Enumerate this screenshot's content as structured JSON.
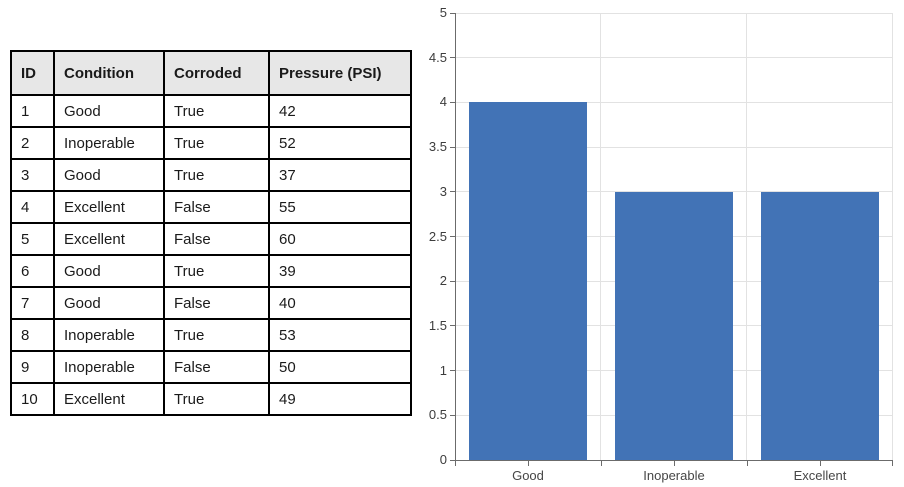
{
  "table": {
    "columns": [
      "ID",
      "Condition",
      "Corroded",
      "Pressure (PSI)"
    ],
    "rows": [
      [
        "1",
        "Good",
        "True",
        "42"
      ],
      [
        "2",
        "Inoperable",
        "True",
        "52"
      ],
      [
        "3",
        "Good",
        "True",
        "37"
      ],
      [
        "4",
        "Excellent",
        "False",
        "55"
      ],
      [
        "5",
        "Excellent",
        "False",
        "60"
      ],
      [
        "6",
        "Good",
        "True",
        "39"
      ],
      [
        "7",
        "Good",
        "False",
        "40"
      ],
      [
        "8",
        "Inoperable",
        "True",
        "53"
      ],
      [
        "9",
        "Inoperable",
        "False",
        "50"
      ],
      [
        "10",
        "Excellent",
        "True",
        "49"
      ]
    ],
    "header_bg": "#E7E7E7",
    "border_color": "#000000"
  },
  "chart_data": {
    "type": "bar",
    "categories": [
      "Good",
      "Inoperable",
      "Excellent"
    ],
    "values": [
      4,
      3,
      3
    ],
    "title": "",
    "xlabel": "",
    "ylabel": "",
    "ylim": [
      0,
      5
    ],
    "ytick_step": 0.5,
    "ytick_labels": [
      "0",
      "0.5",
      "1",
      "1.5",
      "2",
      "2.5",
      "3",
      "3.5",
      "4",
      "4.5",
      "5"
    ],
    "grid": true,
    "legend_position": "none",
    "bar_color": "#4273B6",
    "grid_color": "#E2E2E2",
    "axis_color": "#6B6B6B",
    "bar_width_fraction": 0.808
  }
}
